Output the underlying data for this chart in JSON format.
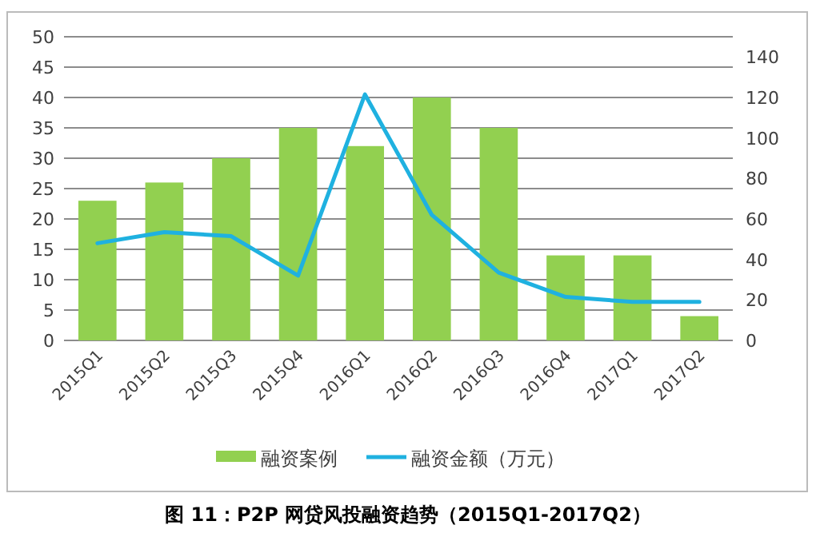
{
  "chart_data": {
    "type": "bar",
    "categories": [
      "2015Q1",
      "2015Q2",
      "2015Q3",
      "2015Q4",
      "2016Q1",
      "2016Q2",
      "2016Q3",
      "2016Q4",
      "2017Q1",
      "2017Q2"
    ],
    "series": [
      {
        "name": "融资案例",
        "color": "#92d050",
        "values": [
          23,
          26,
          30,
          35,
          32,
          40,
          35,
          14,
          14,
          4
        ]
      },
      {
        "name": "融资金额（万元）",
        "type": "line",
        "axis": "y2",
        "color": "#1fb1e0",
        "values": [
          48,
          53.5,
          51.5,
          32,
          121.5,
          62,
          33.5,
          21.5,
          19,
          19
        ]
      }
    ],
    "ylim": [
      0,
      50
    ],
    "yticks": [
      0,
      5,
      10,
      15,
      20,
      25,
      30,
      35,
      40,
      45,
      50
    ],
    "y2lim": [
      0,
      150
    ],
    "y2ticks": [
      0,
      20,
      40,
      60,
      80,
      100,
      120,
      140
    ],
    "grid": "y",
    "legend": "bottom",
    "marker": "none",
    "annotations": [
      "图 11：P2P 网贷风投融资趋势（2015Q1-2017Q2）"
    ]
  }
}
